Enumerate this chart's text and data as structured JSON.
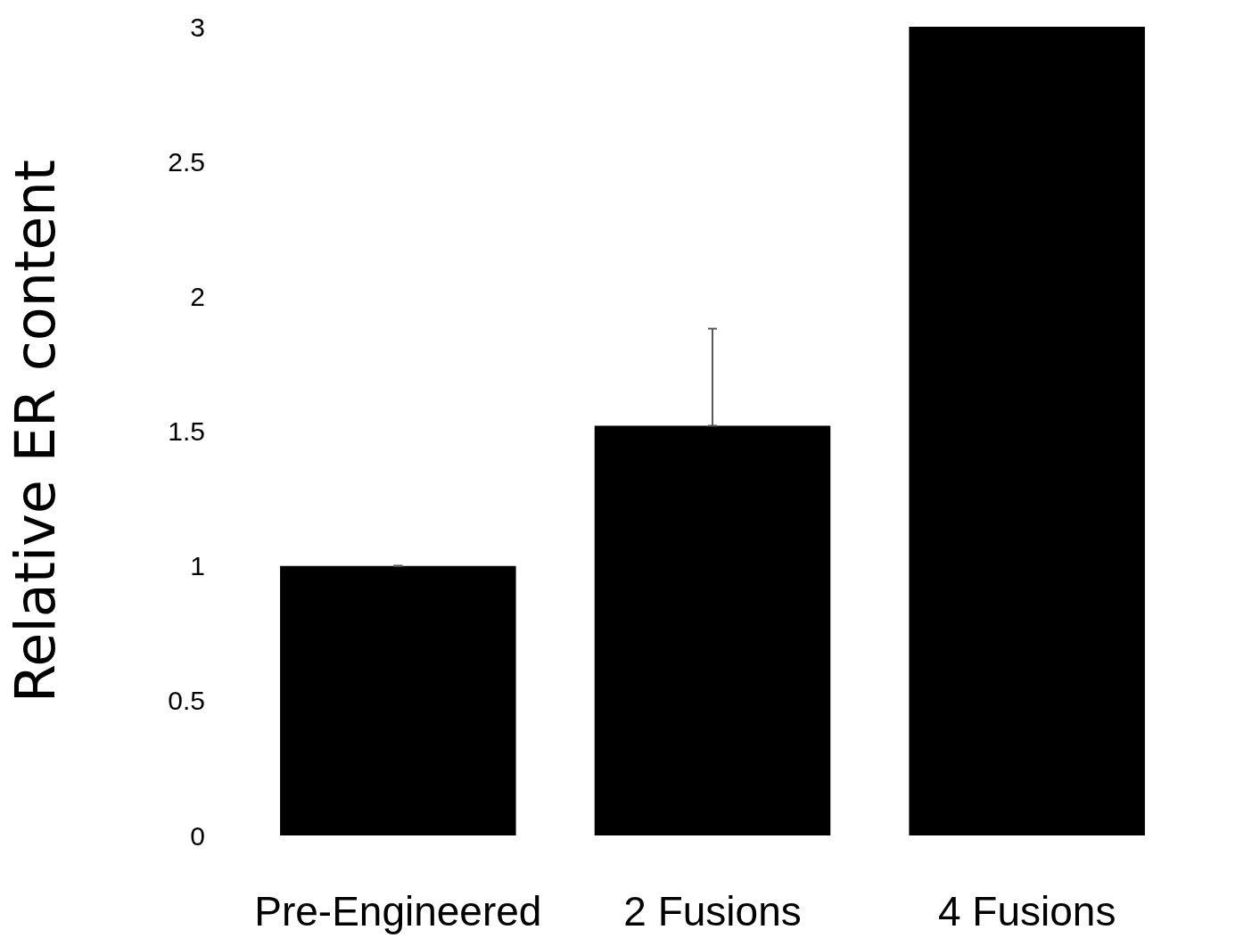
{
  "chart_data": {
    "type": "bar",
    "ylabel": "Relative ER content",
    "categories": [
      "Pre-Engineered",
      "2 Fusions",
      "4 Fusions"
    ],
    "values": [
      1.0,
      1.52,
      3.0
    ],
    "color": "#000000",
    "errors": [
      [
        1.0,
        1.0
      ],
      [
        1.52,
        1.88
      ],
      null
    ],
    "ylim": [
      0,
      3
    ],
    "yticks": [
      0,
      0.5,
      1,
      1.5,
      2,
      2.5,
      3
    ]
  }
}
